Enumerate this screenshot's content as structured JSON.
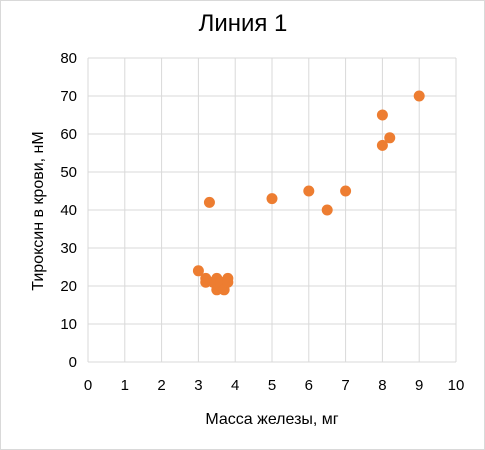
{
  "chart_data": {
    "type": "scatter",
    "title": "Линия 1",
    "xlabel": "Масса железы, мг",
    "ylabel": "Тироксин в крови, нМ",
    "xlim": [
      0,
      10
    ],
    "ylim": [
      0,
      80
    ],
    "x_ticks": [
      "0",
      "1",
      "2",
      "3",
      "4",
      "5",
      "6",
      "7",
      "8",
      "9",
      "10"
    ],
    "y_ticks": [
      "0",
      "10",
      "20",
      "30",
      "40",
      "50",
      "60",
      "70",
      "80"
    ],
    "grid": true,
    "legend": "none",
    "marker_color": "#ED7D31",
    "points": [
      {
        "x": 3.0,
        "y": 24
      },
      {
        "x": 3.2,
        "y": 22
      },
      {
        "x": 3.2,
        "y": 21
      },
      {
        "x": 3.3,
        "y": 42
      },
      {
        "x": 3.4,
        "y": 21
      },
      {
        "x": 3.5,
        "y": 22
      },
      {
        "x": 3.5,
        "y": 19
      },
      {
        "x": 3.6,
        "y": 20
      },
      {
        "x": 3.6,
        "y": 21
      },
      {
        "x": 3.7,
        "y": 19
      },
      {
        "x": 3.8,
        "y": 22
      },
      {
        "x": 3.8,
        "y": 21
      },
      {
        "x": 5.0,
        "y": 43
      },
      {
        "x": 6.0,
        "y": 45
      },
      {
        "x": 6.5,
        "y": 40
      },
      {
        "x": 7.0,
        "y": 45
      },
      {
        "x": 8.0,
        "y": 65
      },
      {
        "x": 8.0,
        "y": 57
      },
      {
        "x": 8.2,
        "y": 59
      },
      {
        "x": 9.0,
        "y": 70
      }
    ]
  }
}
